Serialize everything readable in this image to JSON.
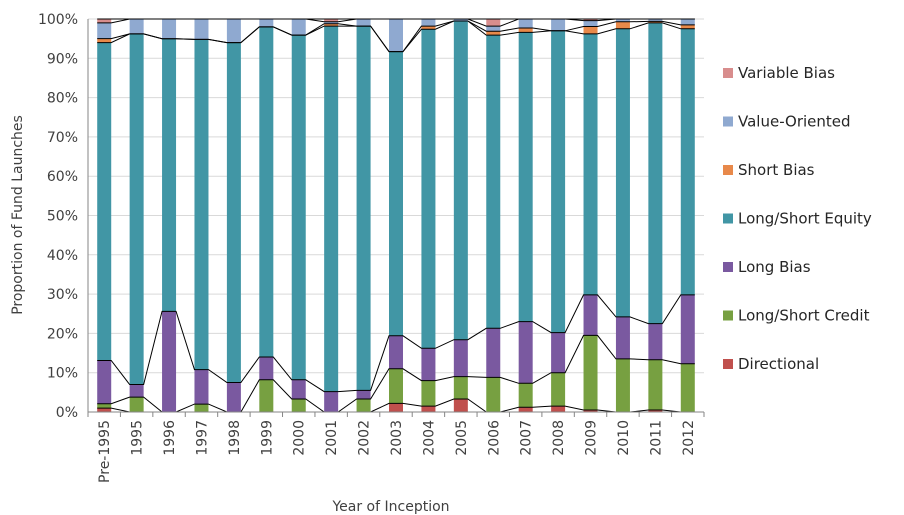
{
  "chart_data": {
    "type": "bar",
    "stacked": true,
    "normalized": true,
    "xlabel": "Year of Inception",
    "ylabel": "Proportion of Fund Launches",
    "ylim": [
      0,
      1
    ],
    "ytick_labels": [
      "0%",
      "10%",
      "20%",
      "30%",
      "40%",
      "50%",
      "60%",
      "70%",
      "80%",
      "90%",
      "100%"
    ],
    "grid": "horizontal",
    "series_lines": true,
    "legend_position": "right",
    "categories": [
      "Pre-1995",
      "1995",
      "1996",
      "1997",
      "1998",
      "1999",
      "2000",
      "2001",
      "2002",
      "2003",
      "2004",
      "2005",
      "2006",
      "2007",
      "2008",
      "2009",
      "2010",
      "2011",
      "2012"
    ],
    "series": [
      {
        "name": "Directional",
        "color": "#c0504d",
        "values": [
          0.01,
          0.0,
          0.0,
          0.0,
          0.0,
          0.0,
          0.0,
          0.0,
          0.0,
          0.022,
          0.015,
          0.033,
          0.0,
          0.012,
          0.015,
          0.005,
          0.0,
          0.005,
          0.0
        ]
      },
      {
        "name": "Long/Short Credit",
        "color": "#77a041",
        "values": [
          0.011,
          0.038,
          0.0,
          0.02,
          0.0,
          0.082,
          0.033,
          0.0,
          0.033,
          0.088,
          0.065,
          0.057,
          0.088,
          0.061,
          0.085,
          0.19,
          0.135,
          0.128,
          0.123
        ]
      },
      {
        "name": "Long Bias",
        "color": "#7a59a0",
        "values": [
          0.11,
          0.032,
          0.256,
          0.088,
          0.075,
          0.058,
          0.049,
          0.052,
          0.022,
          0.084,
          0.082,
          0.094,
          0.125,
          0.157,
          0.102,
          0.103,
          0.107,
          0.092,
          0.175
        ]
      },
      {
        "name": "Long/Short Equity",
        "color": "#4196a5",
        "values": [
          0.809,
          0.892,
          0.694,
          0.84,
          0.865,
          0.84,
          0.877,
          0.93,
          0.927,
          0.723,
          0.812,
          0.811,
          0.746,
          0.736,
          0.768,
          0.664,
          0.733,
          0.765,
          0.677
        ]
      },
      {
        "name": "Short Bias",
        "color": "#e8894a",
        "values": [
          0.01,
          0.0,
          0.0,
          0.0,
          0.0,
          0.0,
          0.0,
          0.006,
          0.0,
          0.0,
          0.008,
          0.0,
          0.01,
          0.011,
          0.0,
          0.019,
          0.018,
          0.004,
          0.01
        ]
      },
      {
        "name": "Value-Oriented",
        "color": "#8fa9d0",
        "values": [
          0.04,
          0.038,
          0.05,
          0.052,
          0.06,
          0.02,
          0.041,
          0.005,
          0.018,
          0.083,
          0.018,
          0.005,
          0.013,
          0.024,
          0.03,
          0.015,
          0.007,
          0.006,
          0.015
        ]
      },
      {
        "name": "Variable Bias",
        "color": "#d88d8d",
        "values": [
          0.01,
          0.0,
          0.0,
          0.0,
          0.0,
          0.0,
          0.0,
          0.007,
          0.0,
          0.0,
          0.0,
          0.0,
          0.018,
          0.0,
          0.0,
          0.004,
          0.0,
          0.0,
          0.0
        ]
      }
    ],
    "legend_order": [
      "Variable Bias",
      "Value-Oriented",
      "Short Bias",
      "Long/Short Equity",
      "Long Bias",
      "Long/Short Credit",
      "Directional"
    ],
    "colors": {
      "gridline": "#d9d9d9",
      "axis": "#868686",
      "series_line": "#000000"
    }
  }
}
